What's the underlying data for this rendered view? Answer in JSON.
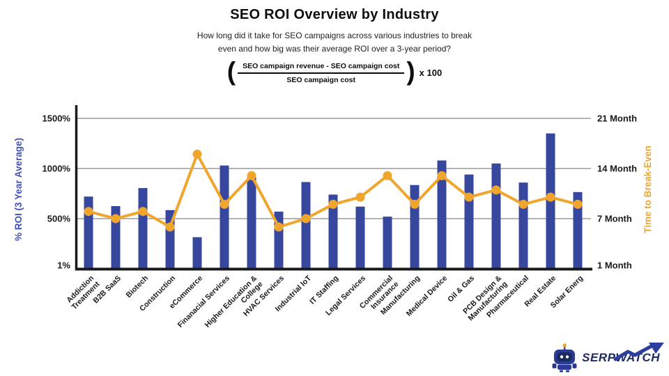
{
  "header": {
    "title": "SEO ROI Overview by Industry",
    "subtitle": "How long did it take for SEO campaigns across various industries to break\neven and how big was their average ROI over a 3-year period?"
  },
  "formula": {
    "open_paren": "(",
    "numerator": "SEO campaign revenue - SEO campaign cost",
    "denominator": "SEO campaign cost",
    "close_paren": ")",
    "multiplier": "x 100"
  },
  "chart_data": {
    "type": "bar+line dual-axis",
    "categories": [
      "Addiction\nTreatment",
      "B2B SaaS",
      "Biotech",
      "Construction",
      "eCommerce",
      "Finanacial Services",
      "Higher Education &\nCollege",
      "HVAC Services",
      "Industrial IoT",
      "IT Staffing",
      "Legal Services",
      "Commercial\nInsurance",
      "Manufacturing",
      "Medical Device",
      "Oil & Gas",
      "PCB Design &\nManufacturing",
      "Pharmaceutical",
      "Real Estate",
      "Solar Energ"
    ],
    "series": [
      {
        "name": "% ROI (3 Year Average)",
        "type": "bar",
        "axis": "left",
        "color": "#37479E",
        "values": [
          720,
          625,
          805,
          585,
          315,
          1030,
          910,
          570,
          865,
          740,
          620,
          520,
          835,
          1080,
          940,
          1050,
          860,
          1350,
          765
        ]
      },
      {
        "name": "Time to Break-Even",
        "type": "line",
        "axis": "right",
        "color": "#F0A52D",
        "values": [
          8,
          7,
          8,
          6,
          16,
          9,
          13,
          6,
          7,
          9,
          10,
          13,
          9,
          13,
          10,
          11,
          9,
          10,
          9
        ]
      }
    ],
    "left_axis": {
      "label": "% ROI (3 Year Average)",
      "label_color": "#4252B4",
      "ticks": [
        "1%",
        "500%",
        "1000%",
        "1500%"
      ],
      "tick_values": [
        1,
        500,
        1000,
        1500
      ],
      "range": [
        1,
        1500
      ]
    },
    "right_axis": {
      "label": "Time to Break-Even",
      "label_color": "#F0A52D",
      "ticks": [
        "1 Month",
        "7 Month",
        "14 Month",
        "21 Month"
      ],
      "tick_values": [
        1,
        7,
        14,
        21
      ],
      "range": [
        1,
        21
      ]
    },
    "grid": true,
    "grid_color": "#9B9B9B",
    "axis_color": "#1A1A1A",
    "legend": "none"
  },
  "logo": {
    "text": "SERPWATCH"
  }
}
